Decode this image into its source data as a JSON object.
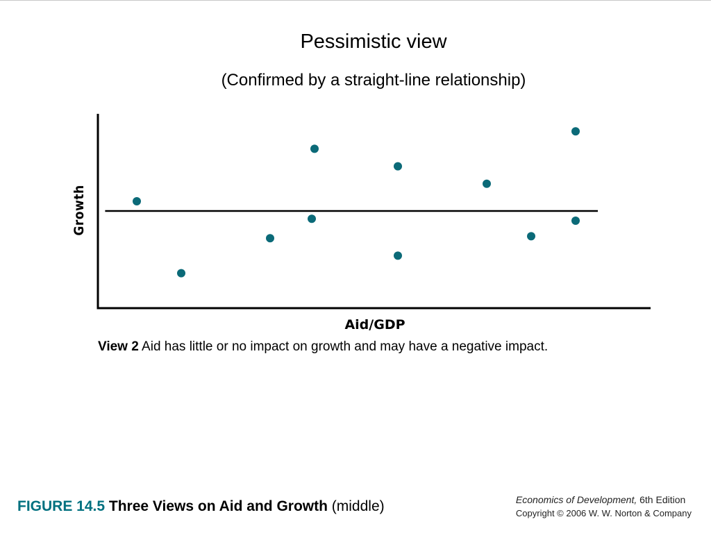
{
  "slide": {
    "title": "Pessimistic view",
    "subtitle": "(Confirmed by a straight-line relationship)"
  },
  "chart_data": {
    "type": "scatter",
    "xlabel": "Aid/GDP",
    "ylabel": "Growth",
    "grid": false,
    "xlim": [
      0,
      100
    ],
    "ylim": [
      0,
      100
    ],
    "points": [
      {
        "x": 7,
        "y": 55
      },
      {
        "x": 15,
        "y": 18
      },
      {
        "x": 31,
        "y": 36
      },
      {
        "x": 39,
        "y": 82
      },
      {
        "x": 38.5,
        "y": 46
      },
      {
        "x": 54,
        "y": 73
      },
      {
        "x": 54,
        "y": 27
      },
      {
        "x": 70,
        "y": 64
      },
      {
        "x": 78,
        "y": 37
      },
      {
        "x": 86,
        "y": 91
      },
      {
        "x": 86,
        "y": 45
      }
    ],
    "reference_line": {
      "y": 50,
      "x_from": 1.3,
      "x_to": 90
    },
    "marker_color": "#0b6a78",
    "line_color": "#000000"
  },
  "caption": {
    "label": "View 2",
    "text": "Aid has little or no impact on growth and may have a negative impact."
  },
  "figure": {
    "number_label": "FIGURE 14.5",
    "title": "Three Views on Aid and Growth",
    "qualifier": "(middle)"
  },
  "source": {
    "book_title": "Economics of Development,",
    "edition": "6th Edition",
    "copyright": "Copyright © 2006 W. W. Norton & Company"
  }
}
